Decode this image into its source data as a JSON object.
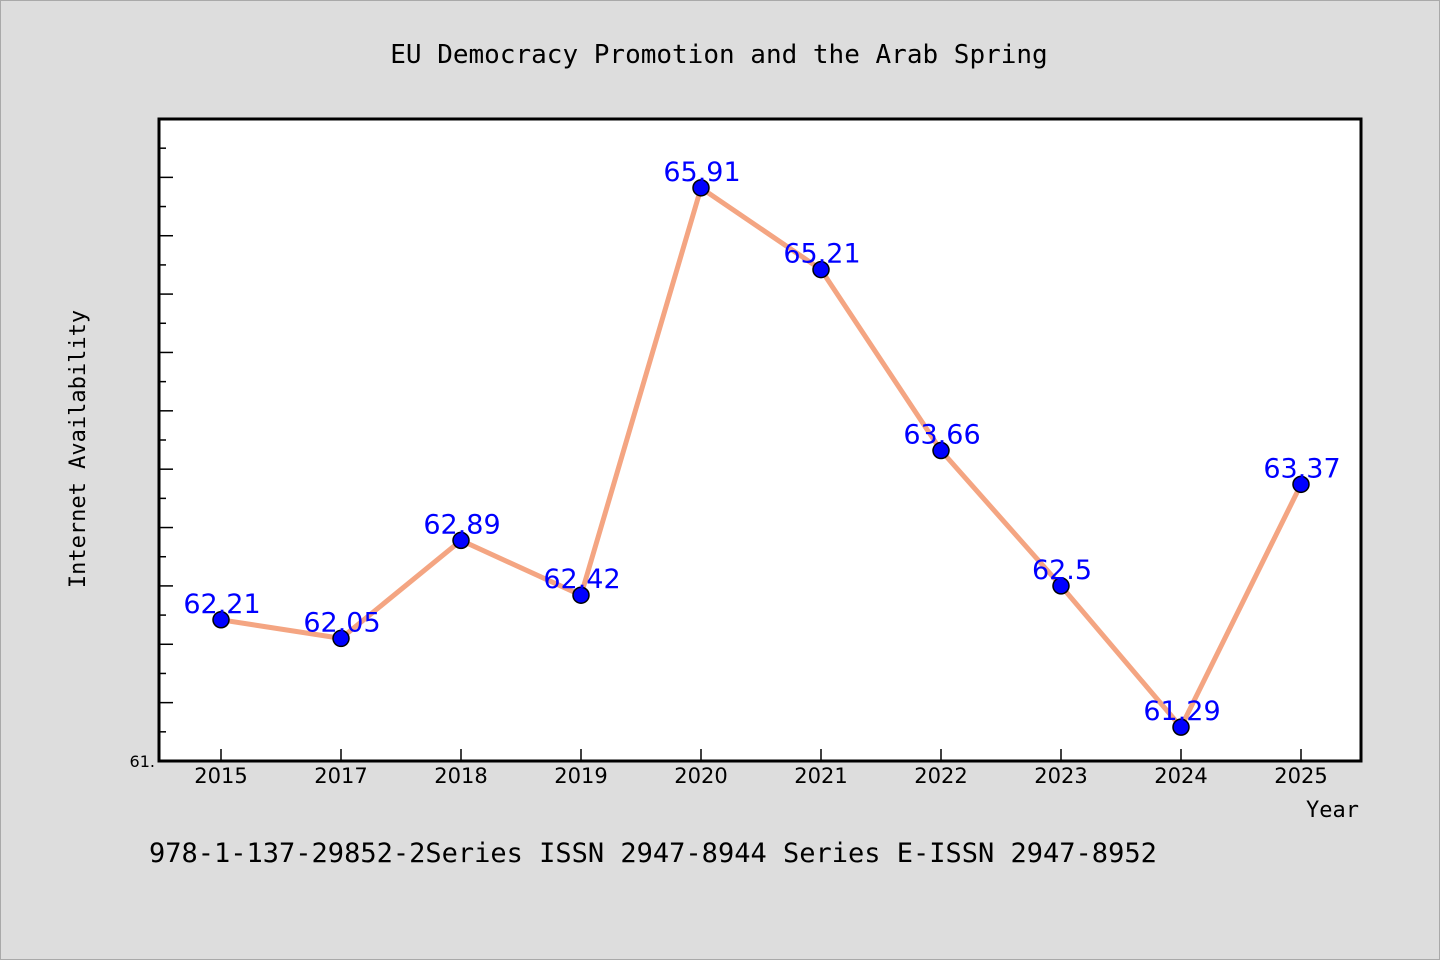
{
  "chart_data": {
    "type": "line",
    "title": "EU Democracy Promotion and the Arab Spring",
    "xlabel": "Year",
    "ylabel": "Internet Availability",
    "categories": [
      "2015",
      "2017",
      "2018",
      "2019",
      "2020",
      "2021",
      "2022",
      "2023",
      "2024",
      "2025"
    ],
    "series": [
      {
        "values": [
          62.21,
          62.05,
          62.89,
          62.42,
          65.91,
          65.21,
          63.66,
          62.5,
          61.29,
          63.37
        ],
        "labels": [
          "62.21",
          "62.05",
          "62.89",
          "62.42",
          "65.91",
          "65.21",
          "63.66",
          "62.5",
          "61.29",
          "63.37"
        ]
      }
    ],
    "ylim": [
      61.0,
      66.5
    ],
    "y_tick_label": "61.",
    "line_color": "#f4a582",
    "marker_color": "#0000ff",
    "label_color": "#0000ff",
    "grid": false,
    "legend": "none"
  },
  "footer": {
    "text": "978-1-137-29852-2Series ISSN 2947-8944 Series E-ISSN 2947-8952"
  }
}
